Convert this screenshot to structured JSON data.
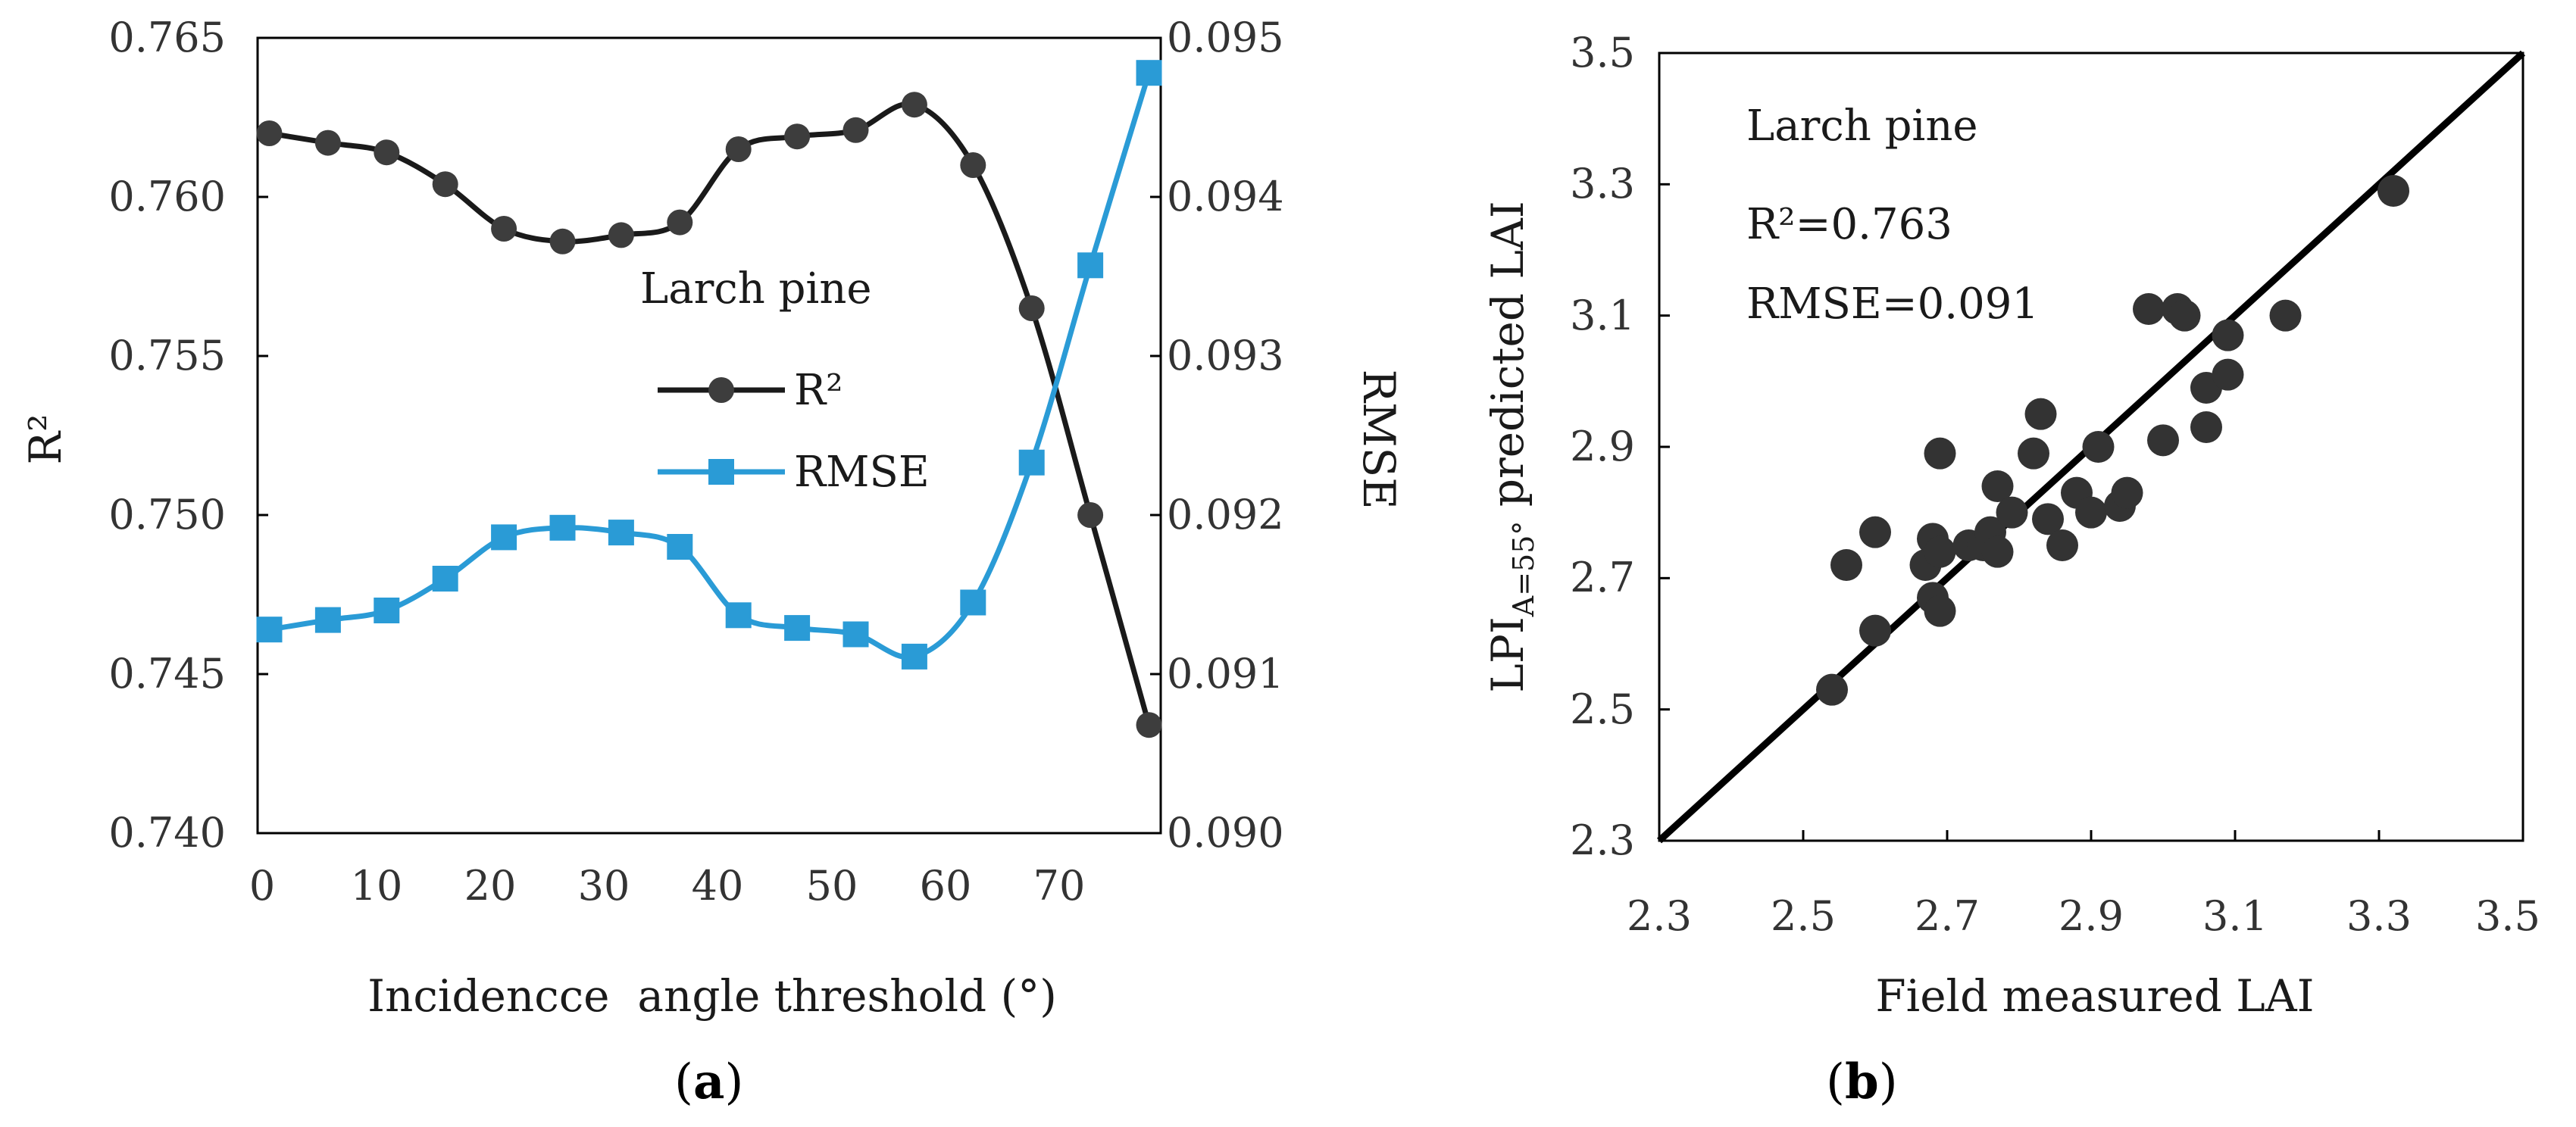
{
  "chart_data": [
    {
      "type": "line",
      "panel_label": "a",
      "annotation": "Larch pine",
      "xlabel": "Incidencce  angle threshold (°)",
      "ylabel": "R²",
      "y2label": "RMSE",
      "xlim": [
        -1,
        76
      ],
      "ylim": [
        0.74,
        0.765
      ],
      "y2lim": [
        0.09,
        0.095
      ],
      "x_ticks": [
        "0",
        "10",
        "20",
        "30",
        "40",
        "50",
        "60",
        "70"
      ],
      "y_ticks": [
        "0.740",
        "0.745",
        "0.750",
        "0.755",
        "0.760",
        "0.765"
      ],
      "y2_ticks": [
        "0.090",
        "0.091",
        "0.092",
        "0.093",
        "0.094",
        "0.095"
      ],
      "x": [
        0,
        5,
        10,
        15,
        20,
        25,
        30,
        35,
        40,
        45,
        50,
        55,
        60,
        65,
        70,
        75
      ],
      "legend": [
        "R²",
        "RMSE"
      ],
      "series": [
        {
          "name": "R²",
          "axis": "left",
          "color": "#1a1a1a",
          "marker_color": "#3d3d3d",
          "marker": "circle",
          "values": [
            0.762,
            0.7617,
            0.7614,
            0.7604,
            0.759,
            0.7586,
            0.7588,
            0.7592,
            0.7615,
            0.7619,
            0.7621,
            0.7629,
            0.761,
            0.7565,
            0.75,
            0.7434
          ]
        },
        {
          "name": "RMSE",
          "axis": "right",
          "color": "#2a9bd6",
          "marker_color": "#2a9bd6",
          "marker": "square",
          "values": [
            0.09128,
            0.09134,
            0.0914,
            0.0916,
            0.09186,
            0.09192,
            0.09189,
            0.0918,
            0.09137,
            0.09129,
            0.09125,
            0.09111,
            0.09145,
            0.09233,
            0.09357,
            0.09478
          ]
        }
      ]
    },
    {
      "type": "scatter",
      "panel_label": "b",
      "annotations": [
        "Larch pine",
        "R²=0.763",
        "RMSE=0.091"
      ],
      "xlabel": "Field measured LAI",
      "ylabel_main": "LPI",
      "ylabel_sub": "A=55°",
      "ylabel_rest": " predicted LAI",
      "xlim": [
        2.3,
        3.5
      ],
      "ylim": [
        2.3,
        3.5
      ],
      "x_ticks": [
        "2.3",
        "2.5",
        "2.7",
        "2.9",
        "3.1",
        "3.3",
        "3.5"
      ],
      "y_ticks": [
        "2.3",
        "2.5",
        "2.7",
        "2.9",
        "3.1",
        "3.3",
        "3.5"
      ],
      "line": {
        "x": [
          2.3,
          3.5
        ],
        "y": [
          2.3,
          3.5
        ],
        "color": "#000000"
      },
      "point_color": "#333333",
      "points": [
        [
          2.54,
          2.53
        ],
        [
          2.56,
          2.72
        ],
        [
          2.6,
          2.77
        ],
        [
          2.6,
          2.62
        ],
        [
          2.67,
          2.72
        ],
        [
          2.68,
          2.76
        ],
        [
          2.68,
          2.67
        ],
        [
          2.69,
          2.74
        ],
        [
          2.69,
          2.65
        ],
        [
          2.69,
          2.89
        ],
        [
          2.73,
          2.75
        ],
        [
          2.75,
          2.75
        ],
        [
          2.76,
          2.77
        ],
        [
          2.77,
          2.84
        ],
        [
          2.77,
          2.74
        ],
        [
          2.79,
          2.8
        ],
        [
          2.83,
          2.95
        ],
        [
          2.82,
          2.89
        ],
        [
          2.84,
          2.79
        ],
        [
          2.86,
          2.75
        ],
        [
          2.88,
          2.83
        ],
        [
          2.9,
          2.8
        ],
        [
          2.91,
          2.9
        ],
        [
          2.94,
          2.81
        ],
        [
          2.95,
          2.83
        ],
        [
          2.98,
          3.11
        ],
        [
          3.0,
          2.91
        ],
        [
          3.02,
          3.11
        ],
        [
          3.03,
          3.1
        ],
        [
          3.06,
          2.93
        ],
        [
          3.06,
          2.99
        ],
        [
          3.09,
          3.07
        ],
        [
          3.09,
          3.01
        ],
        [
          3.17,
          3.1
        ],
        [
          3.32,
          3.29
        ]
      ]
    }
  ],
  "colors": {
    "black_series": "#1a1a1a",
    "blue_series": "#2a9bd6",
    "axis": "#000000"
  }
}
